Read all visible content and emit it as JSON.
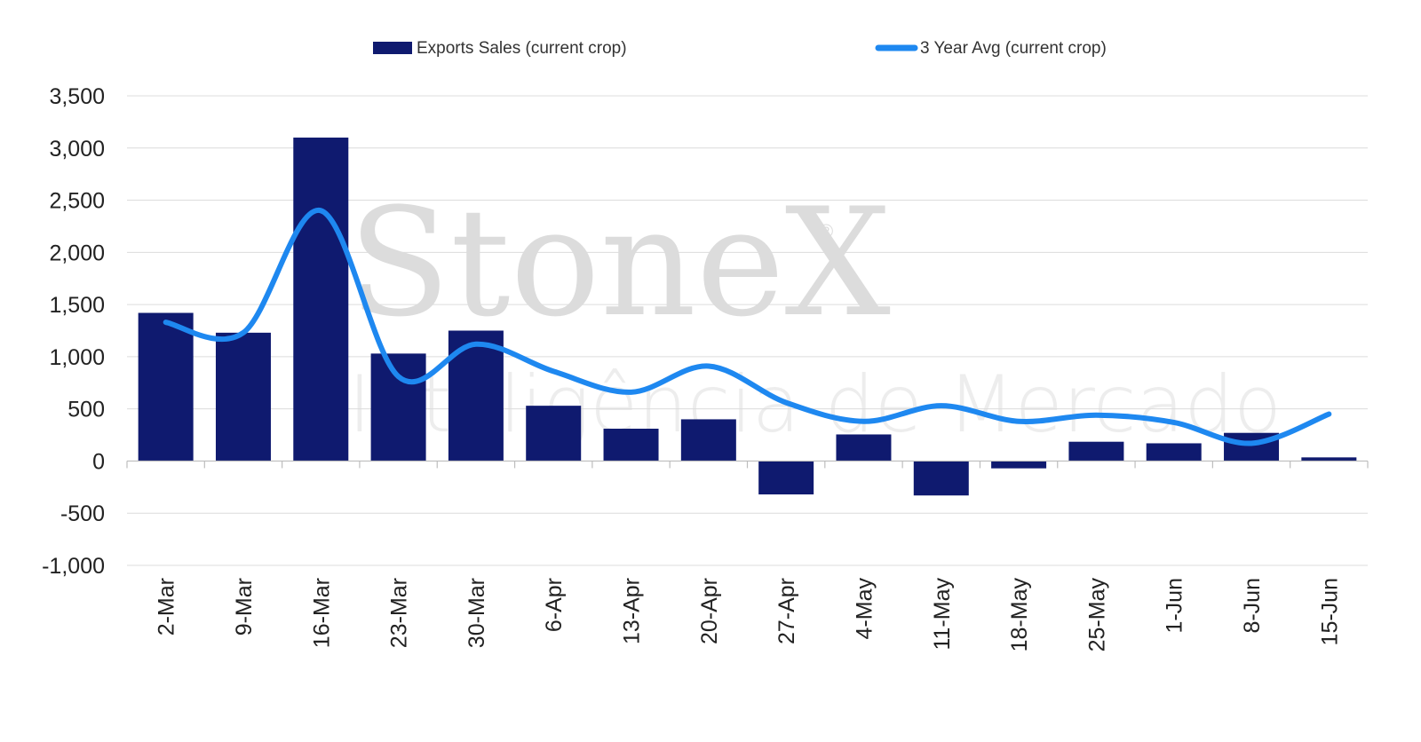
{
  "watermark": {
    "brand": "StoneX",
    "registered": "®",
    "subtitle": "Inteligência de Mercado"
  },
  "chart_data": {
    "type": "bar",
    "title": "",
    "xlabel": "",
    "ylabel": "",
    "ylim": [
      -1000,
      3500
    ],
    "ytick_values": [
      -1000,
      -500,
      0,
      500,
      1000,
      1500,
      2000,
      2500,
      3000,
      3500
    ],
    "ytick_labels": [
      "-1,000",
      "-500",
      "0",
      "500",
      "1,000",
      "1,500",
      "2,000",
      "2,500",
      "3,000",
      "3,500"
    ],
    "grid": true,
    "legend_position": "top",
    "categories": [
      "2-Mar",
      "9-Mar",
      "16-Mar",
      "23-Mar",
      "30-Mar",
      "6-Apr",
      "13-Apr",
      "20-Apr",
      "27-Apr",
      "4-May",
      "11-May",
      "18-May",
      "25-May",
      "1-Jun",
      "8-Jun",
      "15-Jun"
    ],
    "series": [
      {
        "name": "Exports Sales (current crop)",
        "type": "bar",
        "color": "#0f1a6f",
        "values": [
          1420,
          1230,
          3100,
          1030,
          1250,
          530,
          310,
          400,
          -320,
          255,
          -330,
          -70,
          185,
          170,
          270,
          35
        ]
      },
      {
        "name": "3 Year Avg (current crop)",
        "type": "line",
        "color": "#1e88f0",
        "values": [
          1330,
          1230,
          2400,
          810,
          1120,
          860,
          660,
          910,
          560,
          380,
          530,
          380,
          440,
          370,
          170,
          450
        ]
      }
    ]
  }
}
